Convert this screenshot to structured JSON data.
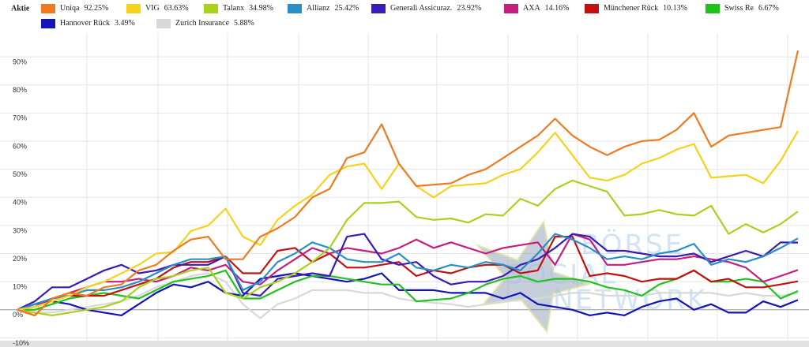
{
  "chart_data": {
    "type": "line",
    "legend_title": "Aktie",
    "categories": [
      null,
      null,
      null,
      null,
      null,
      null,
      null,
      null,
      null,
      null,
      null,
      null,
      null,
      null,
      null,
      null,
      null,
      null,
      null,
      null,
      null,
      null,
      null,
      null,
      null,
      null,
      null,
      null,
      null,
      null,
      null,
      null,
      null,
      null,
      null,
      null,
      null,
      null,
      null,
      null,
      null,
      null,
      null,
      null,
      null,
      null
    ],
    "ylim": [
      -11,
      99
    ],
    "yticks": [
      {
        "value": -10,
        "label": "-10%"
      },
      {
        "value": 0,
        "label": "0%"
      },
      {
        "value": 10,
        "label": "10%"
      },
      {
        "value": 20,
        "label": "20%"
      },
      {
        "value": 30,
        "label": "30%"
      },
      {
        "value": 40,
        "label": "40%"
      },
      {
        "value": 50,
        "label": "50%"
      },
      {
        "value": 60,
        "label": "60%"
      },
      {
        "value": 70,
        "label": "70%"
      },
      {
        "value": 80,
        "label": "80%"
      },
      {
        "value": 90,
        "label": "90%"
      }
    ],
    "grid": true,
    "watermark": [
      "BÖRSE",
      "SOCIAL",
      "NETWORK"
    ],
    "series": [
      {
        "name": "Uniqa",
        "legend_label": "92.25%",
        "color": "#f07a22",
        "values": [
          0,
          -2,
          4,
          6,
          5,
          8,
          9,
          14,
          16,
          21,
          25,
          26,
          18,
          18,
          26,
          29,
          33,
          40,
          43,
          54,
          56,
          66,
          52,
          44,
          44.5,
          45,
          48,
          50,
          54,
          58,
          62,
          68,
          62,
          58,
          55,
          58,
          60,
          60.5,
          64,
          70,
          58,
          62,
          63,
          64,
          65,
          92.25
        ]
      },
      {
        "name": "VIG",
        "legend_label": "63.63%",
        "color": "#f6d21c",
        "values": [
          0,
          1,
          3,
          5,
          8,
          10,
          13,
          16,
          20,
          20.5,
          28,
          30,
          36,
          26,
          23,
          32,
          37,
          41,
          48,
          51,
          52,
          43,
          52,
          44,
          40,
          44,
          44.5,
          45,
          48,
          50,
          56,
          63,
          55,
          47,
          46,
          48,
          52,
          54,
          57,
          59,
          47,
          47.5,
          48,
          45,
          53,
          63.63
        ]
      },
      {
        "name": "Talanx",
        "legend_label": "34.98%",
        "color": "#a9d21e",
        "values": [
          0,
          -1,
          -2,
          -1,
          0,
          1,
          3,
          8,
          11,
          12,
          14,
          15,
          6,
          4,
          8,
          10,
          13,
          17,
          22,
          32,
          38,
          38,
          38.5,
          33,
          32,
          32.5,
          31,
          34,
          33.5,
          39.5,
          37,
          43,
          46,
          44,
          42,
          33.5,
          34,
          35.5,
          34,
          33.5,
          37,
          27,
          30.5,
          27.5,
          30.5,
          34.98
        ]
      },
      {
        "name": "Allianz",
        "legend_label": "25.42%",
        "color": "#2a8fc9",
        "values": [
          0,
          2,
          4,
          5,
          7,
          7,
          8,
          10,
          13,
          16,
          18,
          18,
          19,
          7,
          10,
          17,
          20,
          24,
          22,
          18,
          17,
          17,
          20,
          15,
          14,
          16,
          15,
          17,
          16,
          14,
          20,
          27,
          25,
          22,
          18,
          19,
          18,
          20,
          21,
          23.5,
          16,
          18,
          17,
          19,
          22,
          25.42
        ]
      },
      {
        "name": "Generali Assicuraz.",
        "legend_label": "23.92%",
        "color": "#3a1ab8",
        "values": [
          0,
          3,
          8,
          8,
          11,
          14,
          16,
          13,
          14,
          16,
          16,
          16,
          19,
          6,
          5,
          11,
          12,
          13,
          12,
          26,
          27,
          18,
          16,
          17,
          12,
          9,
          10,
          10,
          12,
          16,
          18,
          22,
          27,
          26,
          21,
          21,
          20,
          19,
          19,
          20,
          17,
          19,
          21,
          19,
          24,
          23.92
        ]
      },
      {
        "name": "AXA",
        "legend_label": "14.16%",
        "color": "#c41e7e",
        "values": [
          0,
          1,
          4,
          6,
          8,
          10,
          10,
          11,
          10,
          12,
          15,
          14,
          16,
          10,
          9,
          14,
          18,
          22,
          20,
          22,
          21,
          20,
          22,
          25,
          22,
          24,
          22,
          20,
          22,
          23,
          24,
          16,
          27,
          25,
          16,
          16,
          17,
          18,
          18,
          19,
          18,
          17,
          15,
          10,
          12,
          14.16
        ]
      },
      {
        "name": "Münchener Rück",
        "legend_label": "10.13%",
        "color": "#c0120e",
        "values": [
          0,
          -2,
          4,
          5,
          5,
          5,
          7,
          9,
          11,
          15,
          17,
          17,
          19,
          13,
          13,
          21,
          22,
          17,
          20,
          15,
          15,
          16,
          17,
          12,
          14,
          13,
          15,
          16,
          16,
          13,
          14,
          26,
          26,
          12,
          13,
          12,
          10,
          11,
          11,
          14,
          10,
          11,
          8,
          8,
          9,
          10.13
        ]
      },
      {
        "name": "Swiss Re",
        "legend_label": "6.67%",
        "color": "#22c21e",
        "values": [
          0,
          0,
          2,
          4,
          5,
          6,
          5,
          4,
          7,
          10,
          11,
          12,
          14,
          4,
          4,
          7,
          10,
          12,
          12,
          11,
          10,
          9,
          9,
          3,
          3.5,
          4,
          6,
          9,
          11,
          12,
          10,
          11,
          11,
          10,
          8,
          7,
          5,
          9,
          11,
          14,
          10,
          10,
          11,
          10,
          4,
          6.67
        ]
      },
      {
        "name": "Hannover Rück",
        "legend_label": "3.49%",
        "color": "#1414b8",
        "values": [
          0,
          2,
          3,
          2,
          0,
          -1,
          -2,
          2,
          6,
          9,
          8,
          10,
          6,
          5,
          11,
          12,
          13,
          12,
          11,
          10,
          11,
          13,
          7,
          7,
          7,
          6,
          6,
          6,
          4,
          6,
          2,
          1,
          0,
          -2,
          -1,
          -2,
          1,
          3,
          4,
          0,
          2,
          -1,
          -1,
          3,
          1,
          3.49
        ]
      },
      {
        "name": "Zurich Insurance",
        "legend_label": "5.88%",
        "color": "#d8d8d8",
        "values": [
          0,
          -1,
          -1,
          0,
          1,
          2,
          3,
          5,
          8,
          10,
          12,
          13,
          10,
          2,
          -3,
          2,
          4,
          7,
          7,
          7,
          6,
          6,
          4,
          3,
          2.5,
          2,
          1,
          2,
          3,
          3.5,
          4,
          5,
          6,
          6,
          5,
          5,
          5,
          6,
          6,
          6,
          6,
          5,
          6,
          5,
          5,
          5.88
        ]
      }
    ]
  }
}
